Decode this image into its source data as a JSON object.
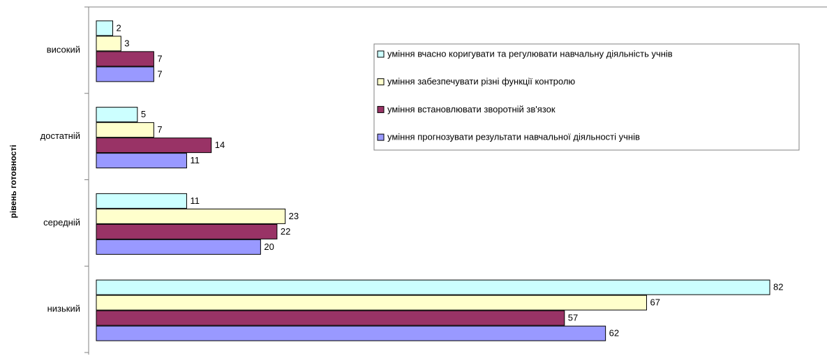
{
  "chart_data": {
    "type": "bar",
    "orientation": "horizontal",
    "y_label": "рівень готовності",
    "categories": [
      "високий",
      "достатній",
      "середній",
      "низький"
    ],
    "series": [
      {
        "name": "уміння вчасно коригувати та регулювати навчальну діяльність учнів",
        "color": "#ccffff",
        "values": [
          2,
          5,
          11,
          82
        ]
      },
      {
        "name": "уміння забезпечувати різні функції контролю",
        "color": "#ffffcc",
        "values": [
          3,
          7,
          23,
          67
        ]
      },
      {
        "name": "уміння встановлювати зворотній зв'язок",
        "color": "#993366",
        "values": [
          7,
          14,
          22,
          57
        ]
      },
      {
        "name": "уміння прогнозувати результати навчальної діяльності учнів",
        "color": "#9999ff",
        "values": [
          7,
          11,
          20,
          62
        ]
      }
    ],
    "xlim": [
      0,
      82
    ]
  }
}
